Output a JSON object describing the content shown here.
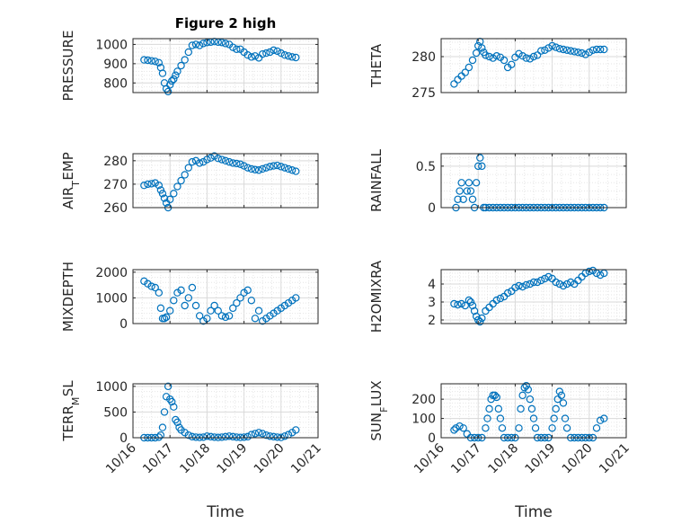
{
  "figure": {
    "title": "Figure 2 high",
    "xlabel": "Time"
  },
  "chart_data": [
    {
      "type": "scatter",
      "id": "pressure",
      "ylabel": "PRESSURE",
      "ylim": [
        750,
        1030
      ],
      "yticks": [
        800,
        900,
        1000
      ],
      "xlim": [
        0,
        5
      ],
      "grid": true,
      "color": "#0072BD",
      "x": [
        0.3,
        0.4,
        0.5,
        0.6,
        0.7,
        0.75,
        0.8,
        0.85,
        0.9,
        0.95,
        1.0,
        1.05,
        1.1,
        1.15,
        1.2,
        1.3,
        1.4,
        1.5,
        1.6,
        1.7,
        1.8,
        1.9,
        2.0,
        2.1,
        2.2,
        2.3,
        2.4,
        2.5,
        2.6,
        2.7,
        2.8,
        2.9,
        3.0,
        3.1,
        3.2,
        3.3,
        3.4,
        3.5,
        3.6,
        3.7,
        3.8,
        3.9,
        4.0,
        4.1,
        4.2,
        4.3,
        4.4
      ],
      "y": [
        920,
        918,
        915,
        912,
        905,
        880,
        850,
        800,
        770,
        755,
        790,
        810,
        820,
        840,
        860,
        890,
        920,
        960,
        995,
        1000,
        995,
        1005,
        1010,
        1012,
        1015,
        1012,
        1010,
        1005,
        1000,
        985,
        975,
        975,
        960,
        945,
        935,
        940,
        930,
        950,
        955,
        960,
        970,
        965,
        955,
        945,
        940,
        935,
        932
      ],
      "xtick_labels": []
    },
    {
      "type": "scatter",
      "id": "theta",
      "ylabel": "THETA",
      "ylim": [
        275,
        282.5
      ],
      "yticks": [
        275,
        280
      ],
      "xlim": [
        0,
        5
      ],
      "grid": true,
      "color": "#0072BD",
      "x": [
        0.35,
        0.45,
        0.55,
        0.65,
        0.75,
        0.85,
        0.95,
        1.0,
        1.05,
        1.1,
        1.15,
        1.2,
        1.3,
        1.4,
        1.5,
        1.6,
        1.7,
        1.8,
        1.9,
        2.0,
        2.1,
        2.2,
        2.3,
        2.4,
        2.5,
        2.6,
        2.7,
        2.8,
        2.9,
        3.0,
        3.1,
        3.2,
        3.3,
        3.4,
        3.5,
        3.6,
        3.7,
        3.8,
        3.9,
        4.0,
        4.1,
        4.2,
        4.3,
        4.4
      ],
      "y": [
        276.2,
        276.8,
        277.3,
        277.8,
        278.5,
        279.5,
        280.5,
        281.5,
        282.1,
        281.2,
        280.6,
        280.2,
        280.0,
        279.8,
        280.1,
        279.9,
        279.5,
        278.5,
        278.9,
        279.9,
        280.4,
        280.1,
        279.8,
        279.7,
        280.0,
        280.2,
        280.8,
        280.9,
        281.2,
        281.5,
        281.3,
        281.1,
        281.0,
        280.9,
        280.8,
        280.7,
        280.6,
        280.5,
        280.3,
        280.6,
        280.9,
        281.0,
        281.0,
        281.0
      ],
      "xtick_labels": []
    },
    {
      "type": "scatter",
      "id": "airtemp",
      "ylabel": "AIR_TEMP",
      "ylim": [
        260,
        283
      ],
      "yticks": [
        260,
        270,
        280
      ],
      "xlim": [
        0,
        5
      ],
      "grid": true,
      "color": "#0072BD",
      "x": [
        0.3,
        0.4,
        0.5,
        0.6,
        0.7,
        0.75,
        0.8,
        0.85,
        0.9,
        0.95,
        1.0,
        1.1,
        1.2,
        1.3,
        1.4,
        1.5,
        1.6,
        1.7,
        1.8,
        1.9,
        2.0,
        2.1,
        2.2,
        2.3,
        2.4,
        2.5,
        2.6,
        2.7,
        2.8,
        2.9,
        3.0,
        3.1,
        3.2,
        3.3,
        3.4,
        3.5,
        3.6,
        3.7,
        3.8,
        3.9,
        4.0,
        4.1,
        4.2,
        4.3,
        4.4
      ],
      "y": [
        269.5,
        270.0,
        270.2,
        270.5,
        269.5,
        267.5,
        266.0,
        264.0,
        262.0,
        260.0,
        263.5,
        266.0,
        269.0,
        271.5,
        274.0,
        277.0,
        279.5,
        280.0,
        279.0,
        279.5,
        280.5,
        281.2,
        282.0,
        281.0,
        280.5,
        280.0,
        279.5,
        279.0,
        278.8,
        278.5,
        277.8,
        277.0,
        276.5,
        276.2,
        276.0,
        276.5,
        277.0,
        277.5,
        277.8,
        278.0,
        277.5,
        277.0,
        276.5,
        276.0,
        275.5
      ],
      "xtick_labels": []
    },
    {
      "type": "scatter",
      "id": "rainfall",
      "ylabel": "RAINFALL",
      "ylim": [
        0,
        0.65
      ],
      "yticks": [
        0,
        0.5
      ],
      "xlim": [
        0,
        5
      ],
      "grid": true,
      "color": "#0072BD",
      "x": [
        0.4,
        0.45,
        0.5,
        0.55,
        0.6,
        0.7,
        0.75,
        0.8,
        0.85,
        0.9,
        0.95,
        1.0,
        1.05,
        1.1,
        1.15,
        1.2,
        1.3,
        1.4,
        1.5,
        1.6,
        1.7,
        1.8,
        1.9,
        2.0,
        2.1,
        2.2,
        2.3,
        2.4,
        2.5,
        2.6,
        2.7,
        2.8,
        2.9,
        3.0,
        3.1,
        3.2,
        3.3,
        3.4,
        3.5,
        3.6,
        3.7,
        3.8,
        3.9,
        4.0,
        4.1,
        4.2,
        4.3,
        4.4
      ],
      "y": [
        0,
        0.1,
        0.2,
        0.3,
        0.1,
        0.2,
        0.3,
        0.2,
        0.1,
        0,
        0.3,
        0.5,
        0.6,
        0.5,
        0,
        0,
        0,
        0,
        0,
        0,
        0,
        0,
        0,
        0,
        0,
        0,
        0,
        0,
        0,
        0,
        0,
        0,
        0,
        0,
        0,
        0,
        0,
        0,
        0,
        0,
        0,
        0,
        0,
        0,
        0,
        0,
        0,
        0
      ],
      "xtick_labels": []
    },
    {
      "type": "scatter",
      "id": "mixdepth",
      "ylabel": "MIXDEPTH",
      "ylim": [
        0,
        2100
      ],
      "yticks": [
        0,
        1000,
        2000
      ],
      "xlim": [
        0,
        5
      ],
      "grid": true,
      "color": "#0072BD",
      "x": [
        0.3,
        0.4,
        0.5,
        0.6,
        0.7,
        0.75,
        0.8,
        0.85,
        0.9,
        1.0,
        1.1,
        1.2,
        1.3,
        1.4,
        1.5,
        1.6,
        1.7,
        1.8,
        1.9,
        2.0,
        2.1,
        2.2,
        2.3,
        2.4,
        2.5,
        2.6,
        2.7,
        2.8,
        2.9,
        3.0,
        3.1,
        3.2,
        3.3,
        3.4,
        3.5,
        3.6,
        3.7,
        3.8,
        3.9,
        4.0,
        4.1,
        4.2,
        4.3,
        4.4
      ],
      "y": [
        1650,
        1550,
        1450,
        1400,
        1200,
        600,
        200,
        200,
        250,
        500,
        900,
        1200,
        1300,
        700,
        1000,
        1400,
        700,
        300,
        100,
        200,
        500,
        700,
        500,
        300,
        250,
        300,
        600,
        800,
        1000,
        1200,
        1300,
        900,
        200,
        500,
        100,
        200,
        300,
        400,
        500,
        600,
        700,
        800,
        900,
        1000
      ],
      "xtick_labels": []
    },
    {
      "type": "scatter",
      "id": "h2omixra",
      "ylabel": "H2OMIXRA",
      "ylim": [
        1.8,
        4.8
      ],
      "yticks": [
        2,
        3,
        4
      ],
      "xlim": [
        0,
        5
      ],
      "grid": true,
      "color": "#0072BD",
      "x": [
        0.35,
        0.45,
        0.55,
        0.65,
        0.75,
        0.8,
        0.85,
        0.9,
        0.95,
        1.0,
        1.05,
        1.1,
        1.2,
        1.3,
        1.4,
        1.5,
        1.6,
        1.7,
        1.8,
        1.9,
        2.0,
        2.1,
        2.2,
        2.3,
        2.4,
        2.5,
        2.6,
        2.7,
        2.8,
        2.9,
        3.0,
        3.1,
        3.2,
        3.3,
        3.4,
        3.5,
        3.6,
        3.7,
        3.8,
        3.9,
        4.0,
        4.1,
        4.2,
        4.3,
        4.4
      ],
      "y": [
        2.9,
        2.85,
        2.9,
        2.8,
        3.1,
        3.0,
        2.8,
        2.5,
        2.2,
        2.0,
        1.9,
        2.1,
        2.5,
        2.7,
        2.9,
        3.1,
        3.2,
        3.3,
        3.5,
        3.6,
        3.8,
        3.9,
        3.85,
        3.95,
        4.0,
        4.1,
        4.1,
        4.2,
        4.3,
        4.4,
        4.3,
        4.1,
        4.0,
        3.9,
        4.0,
        4.1,
        4.0,
        4.2,
        4.4,
        4.6,
        4.7,
        4.75,
        4.6,
        4.5,
        4.6
      ],
      "xtick_labels": []
    },
    {
      "type": "scatter",
      "id": "terrmsl",
      "ylabel": "TERR_MSL",
      "ylim": [
        0,
        1050
      ],
      "yticks": [
        0,
        500,
        1000
      ],
      "xlim": [
        0,
        5
      ],
      "grid": true,
      "color": "#0072BD",
      "x": [
        0.3,
        0.4,
        0.5,
        0.6,
        0.7,
        0.75,
        0.8,
        0.85,
        0.9,
        0.95,
        1.0,
        1.05,
        1.1,
        1.15,
        1.2,
        1.25,
        1.3,
        1.4,
        1.5,
        1.6,
        1.7,
        1.8,
        1.9,
        2.0,
        2.1,
        2.2,
        2.3,
        2.4,
        2.5,
        2.6,
        2.7,
        2.8,
        2.9,
        3.0,
        3.1,
        3.2,
        3.3,
        3.4,
        3.5,
        3.6,
        3.7,
        3.8,
        3.9,
        4.0,
        4.1,
        4.2,
        4.3,
        4.4
      ],
      "y": [
        0,
        0,
        0,
        0,
        10,
        50,
        200,
        500,
        800,
        1000,
        750,
        700,
        600,
        350,
        300,
        200,
        150,
        100,
        50,
        20,
        10,
        5,
        10,
        30,
        20,
        10,
        5,
        10,
        20,
        30,
        20,
        10,
        5,
        10,
        20,
        60,
        80,
        100,
        80,
        50,
        30,
        20,
        10,
        5,
        30,
        60,
        100,
        150
      ],
      "xtick_labels": [
        "10/16",
        "10/17",
        "10/18",
        "10/19",
        "10/20",
        "10/21"
      ]
    },
    {
      "type": "scatter",
      "id": "sunflux",
      "ylabel": "SUN_FLUX",
      "ylim": [
        0,
        280
      ],
      "yticks": [
        0,
        100,
        200
      ],
      "xlim": [
        0,
        5
      ],
      "grid": true,
      "color": "#0072BD",
      "x": [
        0.35,
        0.4,
        0.5,
        0.6,
        0.7,
        0.8,
        0.9,
        1.0,
        1.1,
        1.2,
        1.25,
        1.3,
        1.35,
        1.4,
        1.45,
        1.5,
        1.55,
        1.6,
        1.65,
        1.7,
        1.8,
        1.9,
        2.0,
        2.1,
        2.15,
        2.2,
        2.25,
        2.3,
        2.35,
        2.4,
        2.45,
        2.5,
        2.55,
        2.6,
        2.7,
        2.8,
        2.9,
        3.0,
        3.05,
        3.1,
        3.15,
        3.2,
        3.25,
        3.3,
        3.35,
        3.4,
        3.5,
        3.6,
        3.7,
        3.8,
        3.9,
        4.0,
        4.1,
        4.2,
        4.3,
        4.4
      ],
      "y": [
        40,
        50,
        60,
        50,
        20,
        0,
        0,
        0,
        0,
        50,
        100,
        150,
        200,
        220,
        220,
        210,
        150,
        100,
        50,
        0,
        0,
        0,
        0,
        50,
        150,
        220,
        260,
        270,
        250,
        200,
        150,
        100,
        50,
        0,
        0,
        0,
        0,
        50,
        100,
        150,
        200,
        240,
        220,
        180,
        100,
        50,
        0,
        0,
        0,
        0,
        0,
        0,
        0,
        50,
        90,
        100
      ],
      "xtick_labels": [
        "10/16",
        "10/17",
        "10/18",
        "10/19",
        "10/20",
        "10/21"
      ]
    }
  ]
}
